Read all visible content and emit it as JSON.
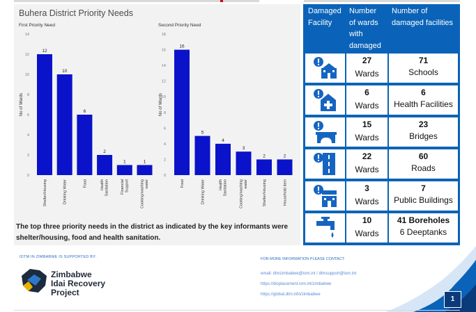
{
  "panel": {
    "title": "Buhera District Priority Needs",
    "footnote": "The top three priority needs in the district as indicated by the key informants were shelter/housing, food and health sanitation."
  },
  "chart_data": [
    {
      "type": "bar",
      "subtitle": "First Priority Need",
      "ylabel": "No of Wards",
      "ylim": [
        0,
        14
      ],
      "yticks": [
        0,
        2,
        4,
        6,
        8,
        10,
        12,
        14
      ],
      "categories": [
        "Shelter/Housing",
        "Drinking Water",
        "Food",
        "Health Sanitation",
        "Financial Support",
        "Cooking/washing water"
      ],
      "values": [
        12,
        10,
        6,
        2,
        1,
        1
      ],
      "color": "#0a13c9"
    },
    {
      "type": "bar",
      "subtitle": "Second Priority Need",
      "ylabel": "No of Wards",
      "ylim": [
        0,
        18
      ],
      "yticks": [
        0,
        2,
        4,
        6,
        8,
        10,
        12,
        14,
        16,
        18
      ],
      "categories": [
        "Food",
        "Drinking Water",
        "Health Sanitation",
        "Cooking/washing water",
        "Shelter/Housing",
        "Household item"
      ],
      "values": [
        16,
        5,
        4,
        3,
        2,
        2
      ],
      "color": "#0a13c9"
    }
  ],
  "table": {
    "headers": {
      "facility": "Damaged Facility",
      "wards": "Number of wards with damaged facilities",
      "count": "Number of damaged facilities"
    },
    "rows": [
      {
        "icon": "school-icon",
        "wards": "27",
        "wards_unit": "Wards",
        "count": "71",
        "label": "Schools"
      },
      {
        "icon": "health-facility-icon",
        "wards": "6",
        "wards_unit": "Wards",
        "count": "6",
        "label": "Health Facilities"
      },
      {
        "icon": "bridge-icon",
        "wards": "15",
        "wards_unit": "Wards",
        "count": "23",
        "label": "Bridges"
      },
      {
        "icon": "road-icon",
        "wards": "22",
        "wards_unit": "Wards",
        "count": "60",
        "label": "Roads"
      },
      {
        "icon": "public-building-icon",
        "wards": "3",
        "wards_unit": "Wards",
        "count": "7",
        "label": "Public Buildings"
      },
      {
        "icon": "water-tap-icon",
        "wards": "10",
        "wards_unit": "Wards",
        "count": "41 Boreholes",
        "label": "6 Deeptanks"
      }
    ]
  },
  "footer": {
    "supported_by": "IDTM IN ZIMBABWE IS SUPPORTED BY:",
    "logo_line1": "Zimbabwe",
    "logo_line2": "Idai Recovery",
    "logo_line3": "Project",
    "contact_label": "FOR MORE INFORMATION PLEASE CONTACT:",
    "email": "email: dtmzimbabwe@iom.int / dtmsupport@iom.int",
    "url1": "https://displacement.iom.int/zimbabwe",
    "url2": "https://global.dtm.info/zimbabwe",
    "page": "1"
  },
  "colors": {
    "bar": "#0a13c9",
    "table_blue": "#0a63b8",
    "icon_blue": "#1565c0"
  }
}
